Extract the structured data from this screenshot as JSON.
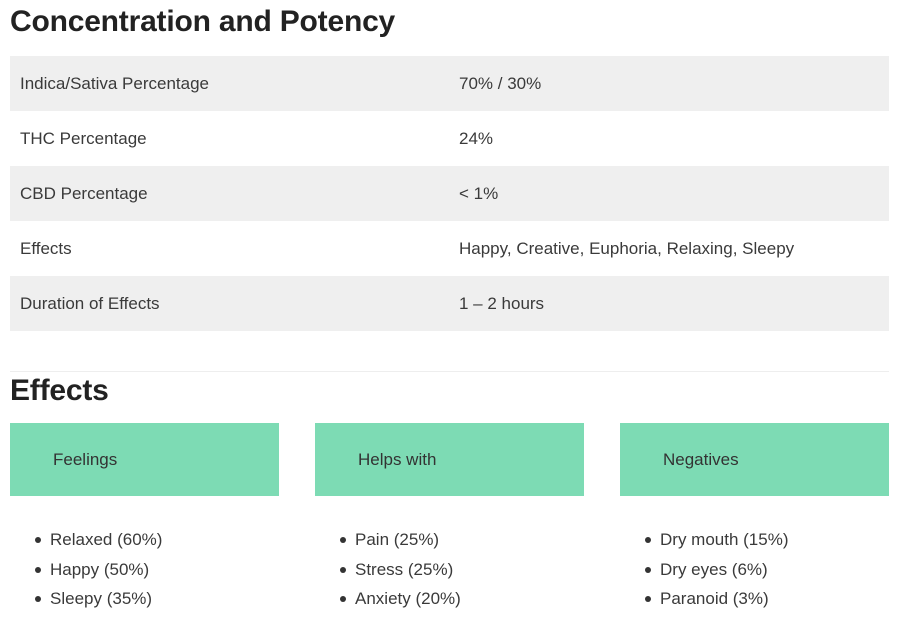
{
  "potency": {
    "title": "Concentration and Potency",
    "rows": [
      {
        "label": "Indica/Sativa Percentage",
        "value": "70% / 30%"
      },
      {
        "label": "THC Percentage",
        "value": "24%"
      },
      {
        "label": "CBD Percentage",
        "value": "< 1%"
      },
      {
        "label": "Effects",
        "value": "Happy, Creative, Euphoria, Relaxing, Sleepy"
      },
      {
        "label": "Duration of Effects",
        "value": "1 – 2 hours"
      }
    ]
  },
  "effects": {
    "title": "Effects",
    "accent_color": "#7ddbb4",
    "columns": [
      {
        "header": "Feelings",
        "items": [
          "Relaxed (60%)",
          "Happy (50%)",
          "Sleepy (35%)"
        ]
      },
      {
        "header": "Helps with",
        "items": [
          "Pain (25%)",
          "Stress (25%)",
          "Anxiety (20%)"
        ]
      },
      {
        "header": "Negatives",
        "items": [
          "Dry mouth (15%)",
          "Dry eyes (6%)",
          "Paranoid (3%)"
        ]
      }
    ]
  }
}
